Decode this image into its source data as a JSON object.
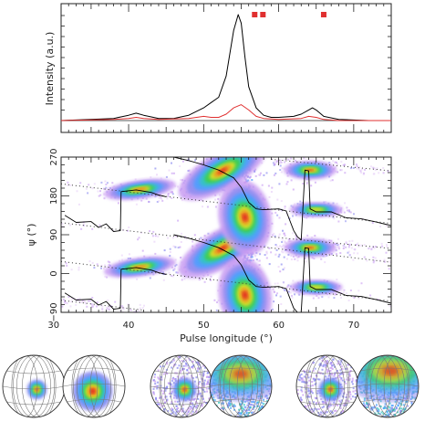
{
  "chart_data": [
    {
      "type": "line",
      "panel": "profile",
      "ylabel": "Intensity (a.u.)",
      "xlim": [
        31,
        75
      ],
      "yticks_labeled": false,
      "markers": {
        "color": "#e03030",
        "x": [
          56.8,
          57.9,
          66.0
        ]
      },
      "series": [
        {
          "color": "#000000",
          "x": [
            31,
            38,
            40,
            41,
            42,
            44,
            46,
            48,
            50,
            51,
            52,
            53,
            54,
            54.6,
            55,
            55.5,
            56,
            57,
            58,
            59,
            60,
            62,
            63,
            64,
            64.5,
            65,
            66,
            68,
            72,
            75
          ],
          "y": [
            0.0,
            0.02,
            0.05,
            0.07,
            0.05,
            0.02,
            0.02,
            0.05,
            0.12,
            0.17,
            0.22,
            0.42,
            0.85,
            1.0,
            0.92,
            0.6,
            0.32,
            0.12,
            0.05,
            0.03,
            0.03,
            0.04,
            0.06,
            0.1,
            0.12,
            0.1,
            0.04,
            0.01,
            0.0,
            0.0
          ]
        },
        {
          "color": "#e03030",
          "x": [
            31,
            38,
            40,
            41,
            42,
            44,
            48,
            50,
            51,
            52,
            53,
            54,
            55,
            56,
            57,
            58,
            60,
            63,
            64,
            65,
            66,
            68,
            75
          ],
          "y": [
            0.0,
            0.01,
            0.02,
            0.03,
            0.02,
            0.01,
            0.02,
            0.04,
            0.03,
            0.03,
            0.06,
            0.12,
            0.15,
            0.1,
            0.04,
            0.02,
            0.01,
            0.02,
            0.04,
            0.03,
            0.01,
            0.0,
            0.0
          ]
        }
      ]
    },
    {
      "type": "heatmap",
      "panel": "position-angle",
      "xlabel": "Pulse longitude (°)",
      "ylabel": "ψ (°)",
      "xlim": [
        31,
        75
      ],
      "ylim": [
        -90,
        270
      ],
      "xticks": [
        30,
        40,
        50,
        60,
        70
      ],
      "yticks": [
        -90,
        0,
        90,
        180,
        270
      ],
      "xtick_labels": [
        "30",
        "40",
        "50",
        "60",
        "70"
      ],
      "ytick_labels": [
        "−90",
        "0",
        "90",
        "180",
        "270"
      ],
      "blobs": [
        {
          "x": 41.5,
          "y": 195,
          "w": 2.2,
          "h": 10,
          "rot": -8,
          "level": 0.9
        },
        {
          "x": 41.5,
          "y": 15,
          "w": 2.2,
          "h": 10,
          "rot": -8,
          "level": 0.9
        },
        {
          "x": 52.5,
          "y": 238,
          "w": 3.0,
          "h": 20,
          "rot": -30,
          "level": 1.0
        },
        {
          "x": 52.5,
          "y": 58,
          "w": 3.0,
          "h": 20,
          "rot": -30,
          "level": 1.0
        },
        {
          "x": 55.5,
          "y": 130,
          "w": 1.6,
          "h": 40,
          "rot": -10,
          "level": 1.0
        },
        {
          "x": 55.5,
          "y": -50,
          "w": 1.6,
          "h": 40,
          "rot": -10,
          "level": 1.0
        },
        {
          "x": 64.2,
          "y": 240,
          "w": 1.6,
          "h": 10,
          "rot": 0,
          "level": 0.95
        },
        {
          "x": 64.2,
          "y": 60,
          "w": 1.6,
          "h": 10,
          "rot": 0,
          "level": 0.95
        },
        {
          "x": 65.0,
          "y": 148,
          "w": 1.6,
          "h": 8,
          "rot": 0,
          "level": 0.75
        },
        {
          "x": 65.0,
          "y": -32,
          "w": 1.6,
          "h": 8,
          "rot": 0,
          "level": 0.75
        }
      ],
      "dotted_lines": [
        {
          "x": [
            31,
            75
          ],
          "y": [
            208,
            116
          ]
        },
        {
          "x": [
            31,
            75
          ],
          "y": [
            28,
            -64
          ]
        },
        {
          "x": [
            31,
            75
          ],
          "y": [
            118,
            26
          ]
        },
        {
          "x": [
            59,
            75
          ],
          "y": [
            265,
            238
          ]
        },
        {
          "x": [
            59,
            75
          ],
          "y": [
            85,
            58
          ]
        },
        {
          "x": [
            31,
            42
          ],
          "y": [
            -62,
            -85
          ]
        }
      ],
      "pa_curves": [
        {
          "x": [
            31.5,
            33,
            35,
            36,
            37,
            38,
            38.9,
            39.0,
            41,
            43,
            44,
            45
          ],
          "y": [
            135,
            120,
            118,
            110,
            112,
            100,
            98,
            190,
            194,
            188,
            182,
            178
          ]
        },
        {
          "x": [
            31.5,
            33,
            35,
            36,
            37,
            38,
            38.9,
            39.0,
            41,
            43,
            44,
            45
          ],
          "y": [
            -45,
            -60,
            -62,
            -70,
            -68,
            -80,
            -82,
            10,
            14,
            8,
            2,
            -2
          ]
        },
        {
          "x": [
            46,
            48,
            50,
            52,
            54,
            55,
            56,
            57,
            58,
            60,
            61,
            62,
            62.5,
            63,
            63.5,
            64,
            64.2,
            65,
            67,
            69,
            71,
            73,
            75
          ],
          "y": [
            270,
            262,
            252,
            240,
            222,
            200,
            165,
            150,
            148,
            150,
            145,
            100,
            85,
            78,
            240,
            238,
            150,
            146,
            140,
            132,
            125,
            120,
            112
          ]
        },
        {
          "x": [
            46,
            48,
            50,
            52,
            54,
            55,
            56,
            57,
            58,
            60,
            61,
            62,
            62.5,
            63,
            63.5,
            64,
            64.2,
            65,
            67,
            69,
            71,
            73,
            75
          ],
          "y": [
            90,
            82,
            72,
            60,
            42,
            20,
            -15,
            -30,
            -32,
            -30,
            -35,
            -80,
            -90,
            -90,
            60,
            58,
            -30,
            -34,
            -40,
            -48,
            -55,
            -60,
            -68
          ]
        }
      ]
    },
    {
      "type": "heatmap",
      "panel": "sphere-maps",
      "sphere_count": 6,
      "spheres": [
        {
          "style": "clean",
          "spot": [
            0.55,
            0.55
          ],
          "spread": 0.1,
          "ring": "orthographic-left"
        },
        {
          "style": "clean",
          "spot": [
            0.48,
            0.58
          ],
          "spread": 0.2,
          "ring": "orthographic-right"
        },
        {
          "style": "noisy",
          "spot": [
            0.55,
            0.55
          ],
          "spread": 0.12,
          "ring": "orthographic-left"
        },
        {
          "style": "noisy-hot",
          "spot": [
            0.5,
            0.3
          ],
          "spread": 0.35,
          "ring": "orthographic-right"
        },
        {
          "style": "noisy",
          "spot": [
            0.55,
            0.55
          ],
          "spread": 0.12,
          "ring": "orthographic-left"
        },
        {
          "style": "noisy-hot",
          "spot": [
            0.55,
            0.25
          ],
          "spread": 0.4,
          "ring": "orthographic-right"
        }
      ]
    }
  ],
  "colors": {
    "axis": "#222222",
    "profile_total": "#000000",
    "profile_linear": "#e03030",
    "heat_scale": [
      "#ffffff",
      "#e8d0f8",
      "#c89cf2",
      "#8c8cf0",
      "#4aa0ff",
      "#30c8c0",
      "#40d040",
      "#f0e020",
      "#f08020",
      "#e02020"
    ]
  }
}
